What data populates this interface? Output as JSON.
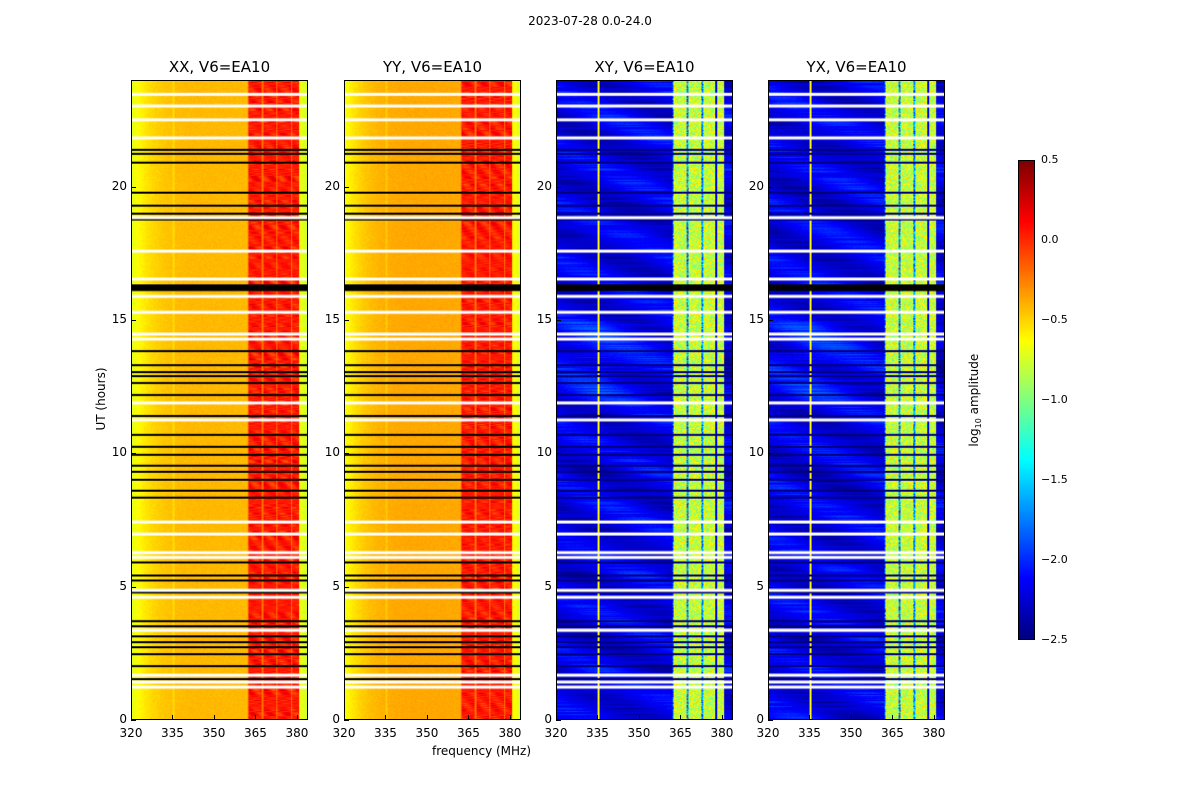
{
  "chart_data": {
    "type": "heatmap",
    "title": "2023-07-28 0.0-24.0",
    "xlabel": "frequency (MHz)",
    "ylabel": "UT (hours)",
    "xlim": [
      320,
      384
    ],
    "ylim": [
      0,
      24
    ],
    "xticks": [
      "320",
      "335",
      "350",
      "365",
      "380"
    ],
    "xtick_values": [
      320,
      335,
      350,
      365,
      380
    ],
    "yticks": [
      "0",
      "5",
      "10",
      "15",
      "20"
    ],
    "ytick_values": [
      0,
      5,
      10,
      15,
      20
    ],
    "panels": [
      {
        "title": "XX, V6=EA10",
        "kind": "parallel"
      },
      {
        "title": "YY, V6=EA10",
        "kind": "parallel"
      },
      {
        "title": "XY, V6=EA10",
        "kind": "cross"
      },
      {
        "title": "YX, V6=EA10",
        "kind": "cross"
      }
    ],
    "colorbar": {
      "label": "log10 amplitude",
      "label_main": "log",
      "label_sub": "10",
      "label_tail": " amplitude",
      "colormap": "jet",
      "range": [
        -2.5,
        0.5
      ],
      "ticks": [
        "0.5",
        "0.0",
        "−0.5",
        "−1.0",
        "−1.5",
        "−2.0",
        "−2.5"
      ],
      "tick_values": [
        0.5,
        0.0,
        -0.5,
        -1.0,
        -1.5,
        -2.0,
        -2.5
      ]
    },
    "flagged_hours_black": [
      21.41,
      21.26,
      20.93,
      19.8,
      19.31,
      19.01,
      18.79,
      13.84,
      13.31,
      13.05,
      12.9,
      12.64,
      12.19,
      11.4,
      10.69,
      10.24,
      9.94,
      9.53,
      9.3,
      9.0,
      8.59,
      8.33,
      5.89,
      5.4,
      5.21,
      4.76,
      3.68,
      3.49,
      3.11,
      2.89,
      2.7,
      2.44,
      1.99,
      1.5
    ],
    "flagged_block_black": [
      16.1,
      16.35
    ],
    "flagged_hours_white": [
      23.5,
      23.06,
      22.54,
      21.86,
      18.86,
      17.6,
      16.55,
      15.9,
      15.3,
      14.48,
      14.29,
      11.89,
      11.25,
      7.41,
      6.96,
      6.26,
      6.08,
      4.84,
      4.58,
      1.65,
      1.39,
      1.2
    ],
    "flagged_block_white": [
      3.28,
      3.4
    ],
    "rfi_band_mhz": [
      362,
      381
    ]
  }
}
